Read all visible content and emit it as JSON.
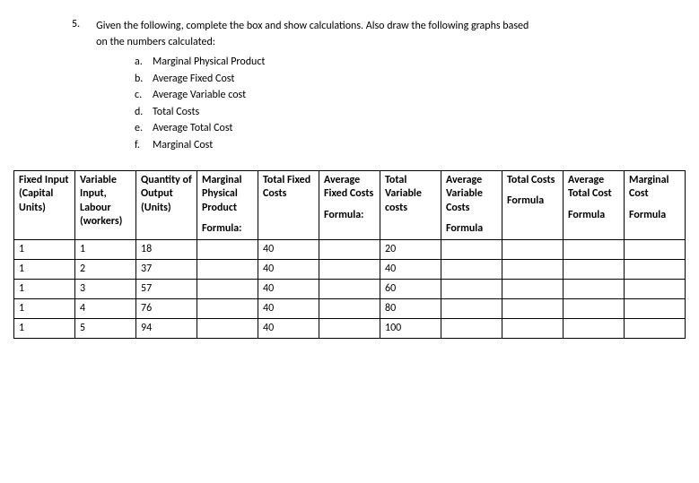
{
  "question": {
    "number": "5.",
    "text_line1": "Given the following, complete the box and show calculations. Also draw the following graphs based",
    "text_line2": "on the numbers calculated:",
    "items": [
      {
        "letter": "a.",
        "text": "Marginal Physical Product"
      },
      {
        "letter": "b.",
        "text": "Average Fixed Cost"
      },
      {
        "letter": "c.",
        "text": "Average Variable cost"
      },
      {
        "letter": "d.",
        "text": "Total Costs"
      },
      {
        "letter": "e.",
        "text": "Average Total Cost"
      },
      {
        "letter": "f.",
        "text": "Marginal Cost"
      }
    ]
  },
  "table": {
    "columns": [
      {
        "title": "Fixed Input (Capital Units)",
        "formula": ""
      },
      {
        "title": "Variable Input, Labour (workers)",
        "formula": ""
      },
      {
        "title": "Quantity of Output (Units)",
        "formula": ""
      },
      {
        "title": "Marginal Physical Product",
        "formula": "Formula:"
      },
      {
        "title": "Total Fixed Costs",
        "formula": ""
      },
      {
        "title": "Average Fixed Costs",
        "formula": "Formula:"
      },
      {
        "title": "Total Variable costs",
        "formula": ""
      },
      {
        "title": "Average Variable Costs",
        "formula": "Formula"
      },
      {
        "title": "Total Costs",
        "formula": "Formula"
      },
      {
        "title": "Average Total Cost",
        "formula": "Formula"
      },
      {
        "title": "Marginal Cost",
        "formula": "Formula"
      }
    ],
    "rows": [
      [
        "1",
        "1",
        "18",
        "",
        "40",
        "",
        "20",
        "",
        "",
        "",
        ""
      ],
      [
        "1",
        "2",
        "37",
        "",
        "40",
        "",
        "40",
        "",
        "",
        "",
        ""
      ],
      [
        "1",
        "3",
        "57",
        "",
        "40",
        "",
        "60",
        "",
        "",
        "",
        ""
      ],
      [
        "1",
        "4",
        "76",
        "",
        "40",
        "",
        "80",
        "",
        "",
        "",
        ""
      ],
      [
        "1",
        "5",
        "94",
        "",
        "40",
        "",
        "100",
        "",
        "",
        "",
        ""
      ]
    ],
    "border_color": "#000000",
    "background_color": "#ffffff",
    "text_color": "#000000",
    "font_size": 12
  }
}
